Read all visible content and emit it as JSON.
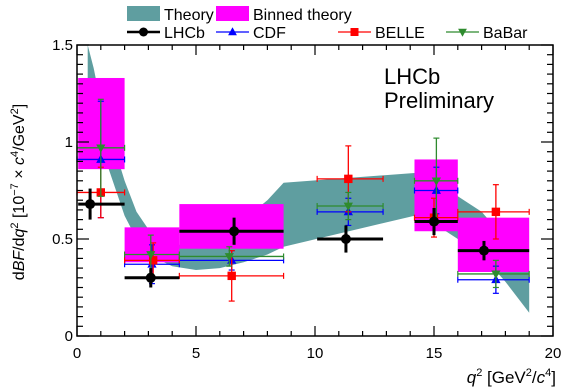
{
  "chart_data": {
    "type": "scatter",
    "xlabel_main": "q",
    "xlabel_sup": "2",
    "xlabel_rest": " [GeV",
    "xlabel_sup2": "2",
    "xlabel_slash": "/",
    "xlabel_c": "c",
    "xlabel_sup3": "4",
    "xlabel_end": "]",
    "ylabel_parts": [
      "d",
      "BF",
      "/d",
      "q",
      "2",
      " [10",
      "−7",
      " × ",
      "c",
      "4",
      "/GeV",
      "2",
      "]"
    ],
    "xlim": [
      0,
      20
    ],
    "ylim": [
      0,
      1.5
    ],
    "xticks": [
      0,
      5,
      10,
      15,
      20
    ],
    "yticks": [
      0,
      0.5,
      1,
      1.5
    ],
    "ytick_labels": [
      "0",
      "0.5",
      "1",
      "1.5"
    ],
    "annotation_line1": "LHCb",
    "annotation_line2": "Preliminary",
    "legend_items": [
      {
        "label": "Theory",
        "kind": "band",
        "color": "#5f9ea0"
      },
      {
        "label": "Binned theory",
        "kind": "box",
        "color": "#ff00ff"
      },
      {
        "label": "LHCb",
        "kind": "marker",
        "marker": "circle",
        "color": "#000000"
      },
      {
        "label": "CDF",
        "kind": "marker",
        "marker": "triangle-up",
        "color": "#0000ff"
      },
      {
        "label": "BELLE",
        "kind": "marker",
        "marker": "square",
        "color": "#ff0000"
      },
      {
        "label": "BaBar",
        "kind": "marker",
        "marker": "triangle-down",
        "color": "#2e8b2e"
      }
    ],
    "theory_band": {
      "x": [
        0.45,
        0.7,
        1.0,
        1.5,
        2.0,
        2.5,
        3.0,
        4.0,
        5.0,
        6.0,
        7.0,
        8.0,
        8.68,
        14.18,
        15.0,
        16.0,
        17.0,
        18.0,
        19.0
      ],
      "lo": [
        1.3,
        1.12,
        0.98,
        0.8,
        0.62,
        0.5,
        0.42,
        0.36,
        0.34,
        0.35,
        0.38,
        0.42,
        0.46,
        0.62,
        0.58,
        0.5,
        0.42,
        0.28,
        0.12
      ],
      "hi": [
        1.55,
        1.38,
        1.2,
        1.0,
        0.8,
        0.64,
        0.55,
        0.47,
        0.47,
        0.52,
        0.6,
        0.7,
        0.79,
        0.84,
        0.78,
        0.72,
        0.64,
        0.5,
        0.33
      ]
    },
    "binned_theory": [
      {
        "x0": 0.05,
        "x1": 2.0,
        "y0": 0.86,
        "y1": 1.33
      },
      {
        "x0": 2.0,
        "x1": 4.3,
        "y0": 0.38,
        "y1": 0.56
      },
      {
        "x0": 4.3,
        "x1": 8.68,
        "y0": 0.45,
        "y1": 0.68
      },
      {
        "x0": 14.18,
        "x1": 16.0,
        "y0": 0.54,
        "y1": 0.91
      },
      {
        "x0": 16.0,
        "x1": 19.0,
        "y0": 0.33,
        "y1": 0.61
      }
    ],
    "series": [
      {
        "name": "LHCb",
        "marker": "circle",
        "color": "#000000",
        "points": [
          {
            "x": 0.55,
            "xlo": 0.05,
            "xhi": 2.0,
            "y": 0.68,
            "yerr": 0.08
          },
          {
            "x": 3.1,
            "xlo": 2.0,
            "xhi": 4.3,
            "y": 0.3,
            "yerr": 0.05
          },
          {
            "x": 6.6,
            "xlo": 4.3,
            "xhi": 8.68,
            "y": 0.54,
            "yerr": 0.07
          },
          {
            "x": 11.3,
            "xlo": 10.09,
            "xhi": 12.86,
            "y": 0.5,
            "yerr": 0.07
          },
          {
            "x": 15.0,
            "xlo": 14.18,
            "xhi": 16.0,
            "y": 0.59,
            "yerr": 0.07
          },
          {
            "x": 17.1,
            "xlo": 16.0,
            "xhi": 19.0,
            "y": 0.44,
            "yerr": 0.05
          }
        ]
      },
      {
        "name": "CDF",
        "marker": "triangle-up",
        "color": "#0000ff",
        "points": [
          {
            "x": 1.0,
            "xlo": 0.0,
            "xhi": 2.0,
            "y": 0.91,
            "yerr": 0.3
          },
          {
            "x": 3.15,
            "xlo": 2.0,
            "xhi": 4.3,
            "y": 0.37,
            "yerr": 0.1
          },
          {
            "x": 6.5,
            "xlo": 4.3,
            "xhi": 8.68,
            "y": 0.39,
            "yerr": 0.05
          },
          {
            "x": 11.4,
            "xlo": 10.09,
            "xhi": 12.86,
            "y": 0.64,
            "yerr": 0.07
          },
          {
            "x": 15.1,
            "xlo": 14.18,
            "xhi": 16.0,
            "y": 0.75,
            "yerr": 0.12
          },
          {
            "x": 17.6,
            "xlo": 16.0,
            "xhi": 19.0,
            "y": 0.29,
            "yerr": 0.07
          }
        ]
      },
      {
        "name": "BELLE",
        "marker": "square",
        "color": "#ff0000",
        "points": [
          {
            "x": 1.0,
            "xlo": 0.0,
            "xhi": 2.0,
            "y": 0.74,
            "yerr": 0.13
          },
          {
            "x": 3.2,
            "xlo": 2.0,
            "xhi": 4.3,
            "y": 0.39,
            "yerr": 0.09
          },
          {
            "x": 6.5,
            "xlo": 4.3,
            "xhi": 8.68,
            "y": 0.31,
            "yerr": 0.13
          },
          {
            "x": 11.4,
            "xlo": 10.09,
            "xhi": 12.86,
            "y": 0.81,
            "yerr": 0.17
          },
          {
            "x": 15.0,
            "xlo": 14.18,
            "xhi": 16.0,
            "y": 0.61,
            "yerr": 0.1
          },
          {
            "x": 17.6,
            "xlo": 16.0,
            "xhi": 19.0,
            "y": 0.64,
            "yerr": 0.14
          }
        ]
      },
      {
        "name": "BaBar",
        "marker": "triangle-down",
        "color": "#2e8b2e",
        "points": [
          {
            "x": 1.0,
            "xlo": 0.0,
            "xhi": 2.0,
            "y": 0.97,
            "yerr": 0.25
          },
          {
            "x": 3.1,
            "xlo": 2.0,
            "xhi": 4.3,
            "y": 0.42,
            "yerr": 0.1
          },
          {
            "x": 6.4,
            "xlo": 4.3,
            "xhi": 8.68,
            "y": 0.41,
            "yerr": 0.05
          },
          {
            "x": 11.4,
            "xlo": 10.09,
            "xhi": 12.86,
            "y": 0.67,
            "yerr": 0.07
          },
          {
            "x": 15.1,
            "xlo": 14.18,
            "xhi": 16.0,
            "y": 0.8,
            "yerr": 0.22
          },
          {
            "x": 17.6,
            "xlo": 16.0,
            "xhi": 19.0,
            "y": 0.32,
            "yerr": 0.07
          }
        ]
      }
    ]
  }
}
